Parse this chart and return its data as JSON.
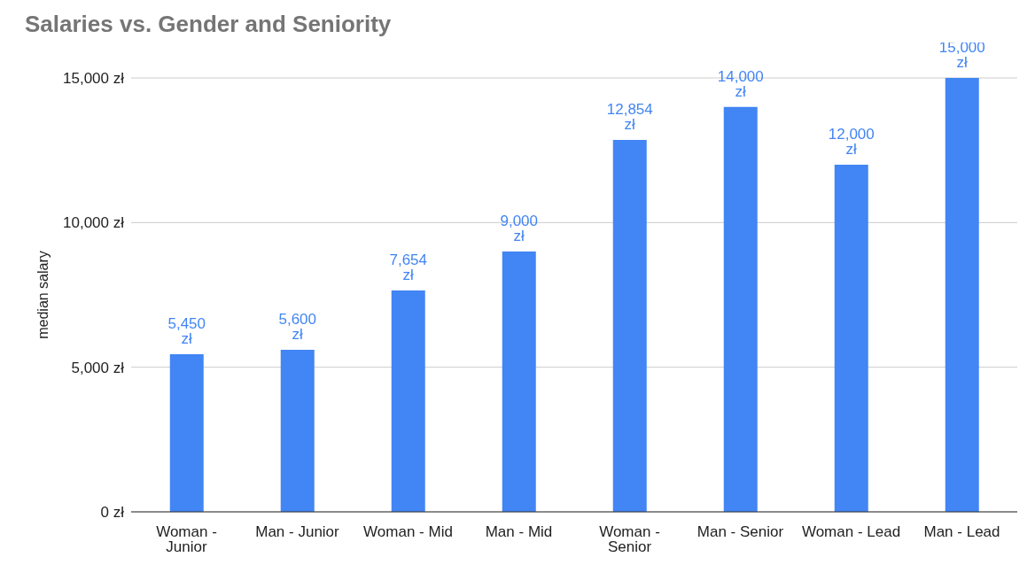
{
  "chart_data": {
    "type": "bar",
    "title": "Salaries vs. Gender and Seniority",
    "ylabel": "median salary",
    "categories": [
      "Woman - Junior",
      "Man - Junior",
      "Woman - Mid",
      "Man - Mid",
      "Woman - Senior",
      "Man - Senior",
      "Woman - Lead",
      "Man - Lead"
    ],
    "values": [
      5450,
      5600,
      7654,
      9000,
      12854,
      14000,
      12000,
      15000
    ],
    "value_labels": [
      "5,450 zł",
      "5,600 zł",
      "7,654 zł",
      "9,000 zł",
      "12,854 zł",
      "14,000 zł",
      "12,000 zł",
      "15,000 zł"
    ],
    "color": "#4285f4",
    "ylim": [
      0,
      15000
    ],
    "yticks": [
      {
        "value": 0,
        "label": "0 zł"
      },
      {
        "value": 5000,
        "label": "5,000 zł"
      },
      {
        "value": 10000,
        "label": "10,000 zł"
      },
      {
        "value": 15000,
        "label": "15,000 zł"
      }
    ],
    "grid": "y"
  }
}
